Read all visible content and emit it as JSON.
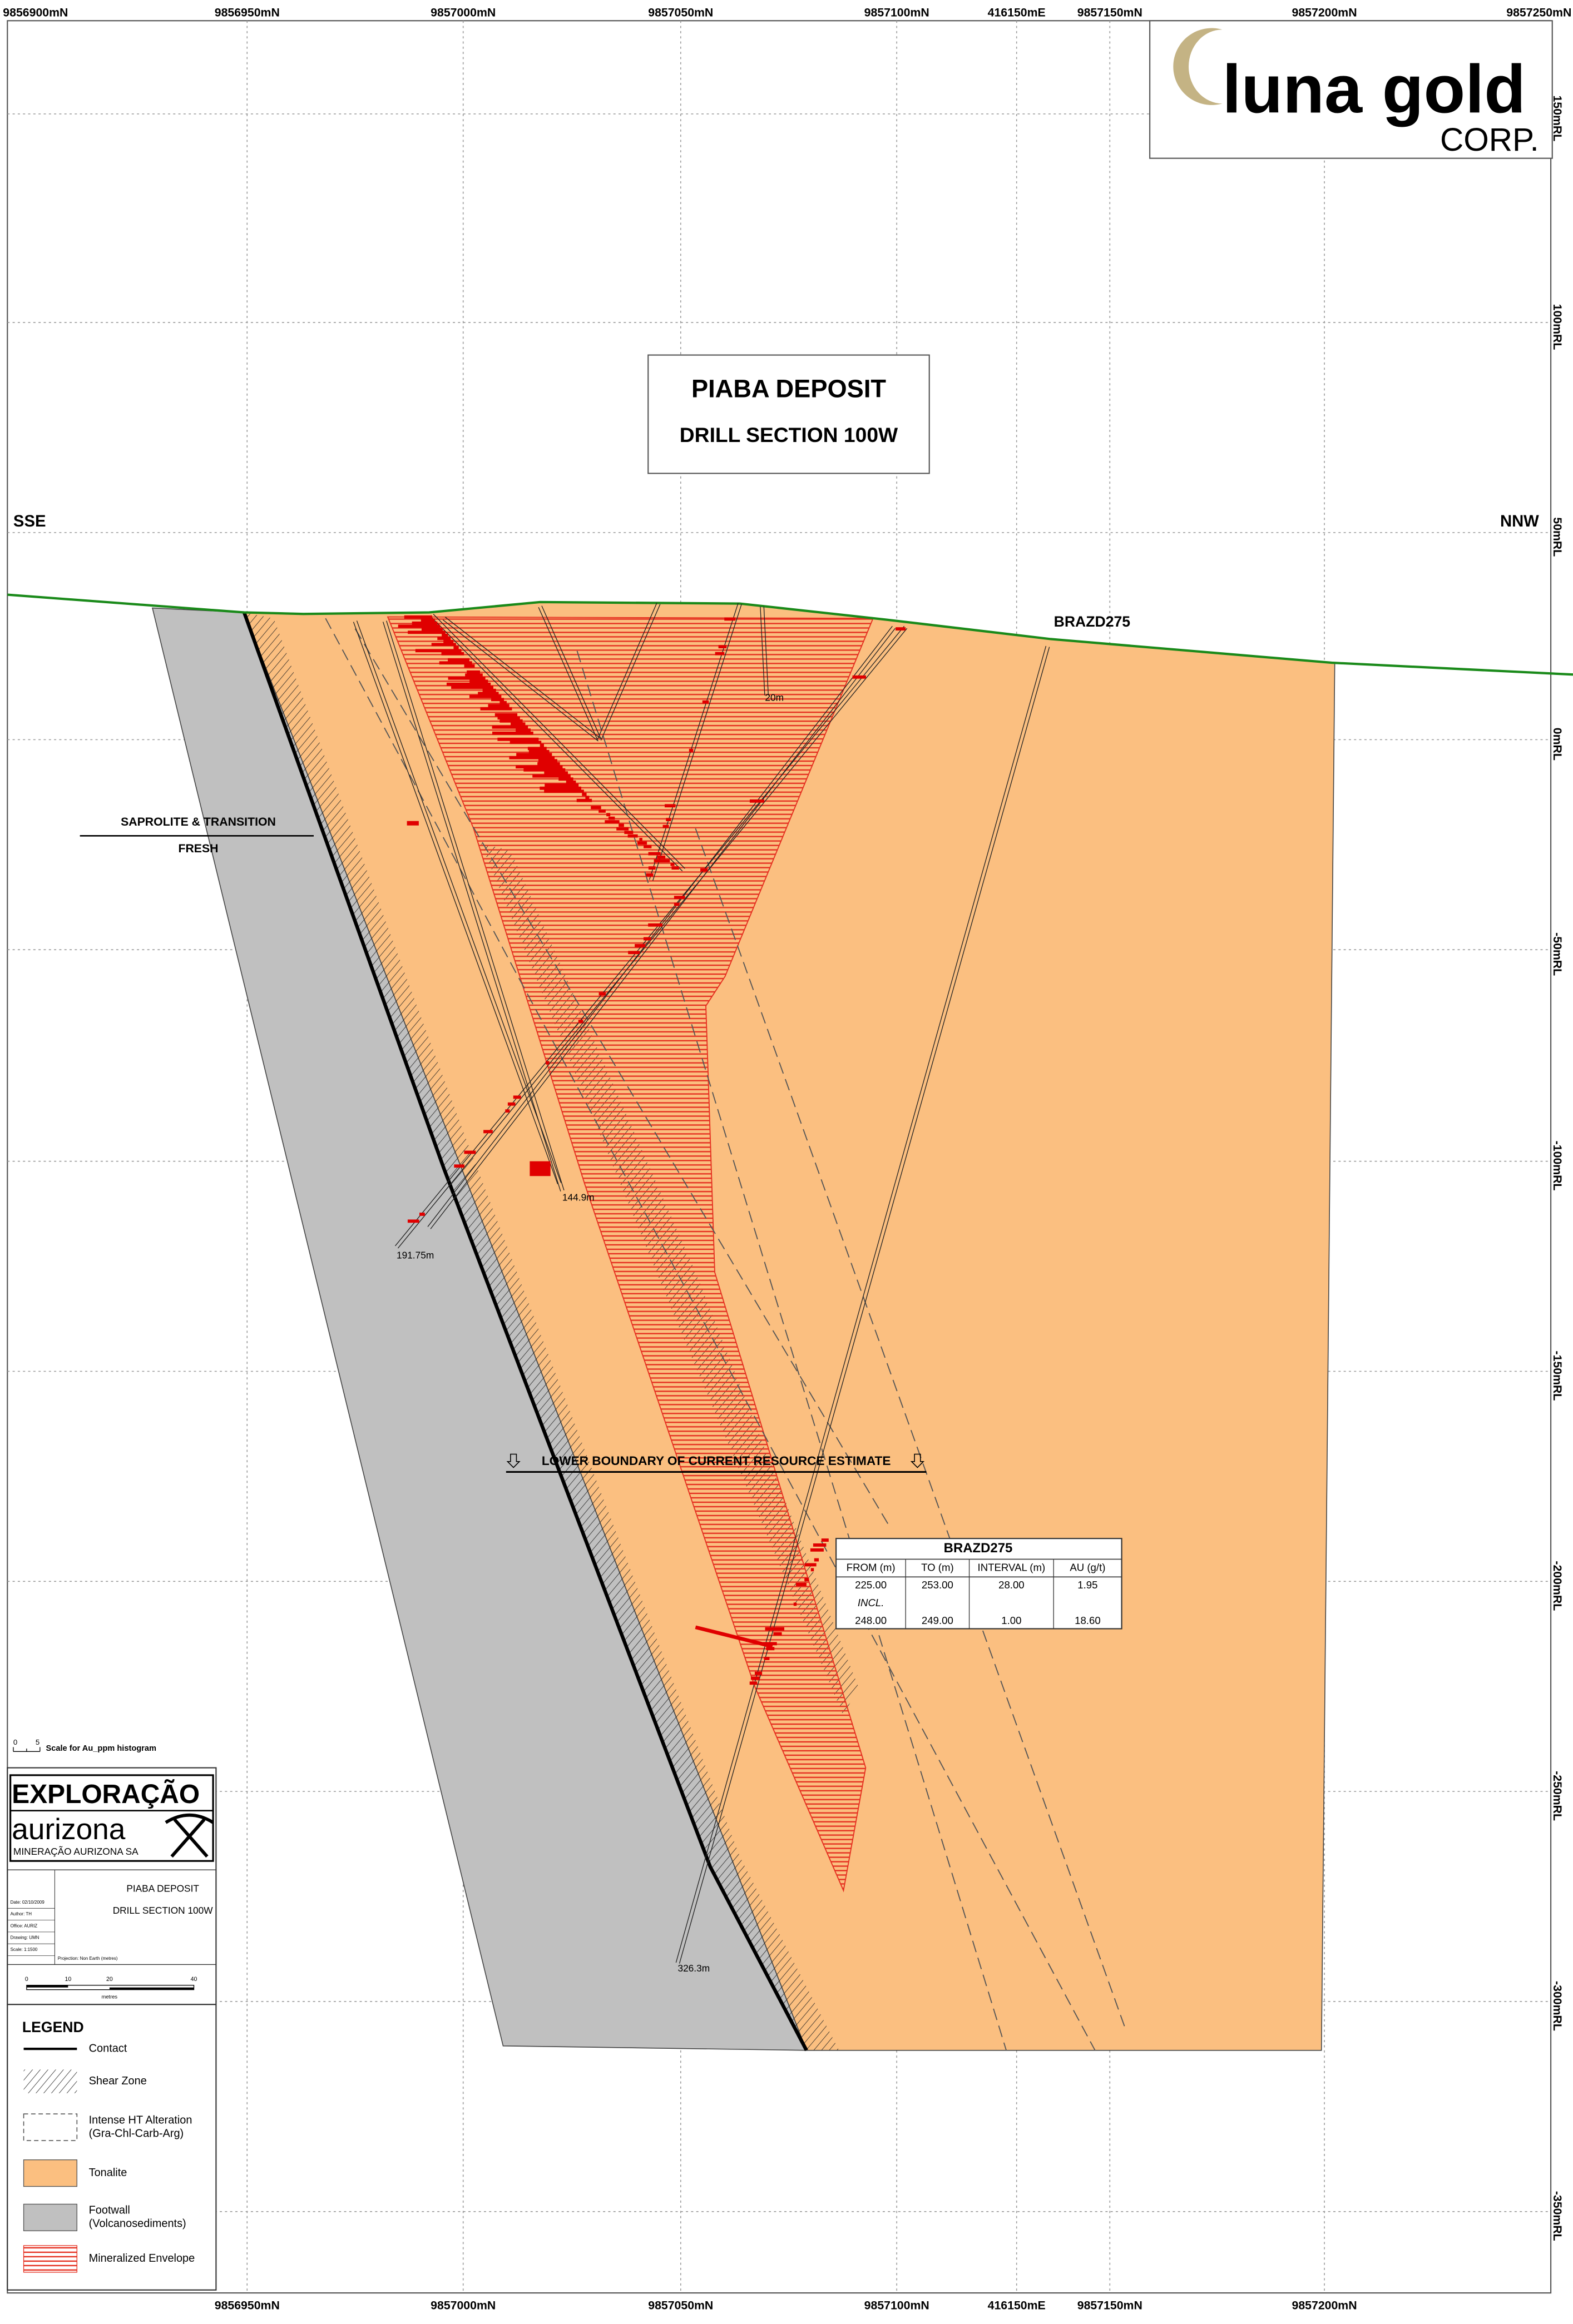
{
  "grid": {
    "top_labels": [
      "9856900mN",
      "9856950mN",
      "9857000mN",
      "9857050mN",
      "9857100mN",
      "416150mE",
      "9857150mN",
      "9857200mN",
      "9857250mN"
    ],
    "bottom_labels": [
      "9856950mN",
      "9857000mN",
      "9857050mN",
      "9857100mN",
      "416150mE",
      "9857150mN",
      "9857200mN"
    ],
    "right_labels": [
      "150mRL",
      "100mRL",
      "50mRL",
      "0mRL",
      "-50mRL",
      "-100mRL",
      "-150mRL",
      "-200mRL",
      "-250mRL",
      "-300mRL",
      "-350mRL"
    ]
  },
  "title_box": {
    "title": "PIABA DEPOSIT",
    "subtitle": "DRILL SECTION 100W"
  },
  "logo": {
    "word1": "luna",
    "word2": "gold",
    "word3": "CORP."
  },
  "orientation": {
    "left": "SSE",
    "right": "NNW"
  },
  "labels": {
    "hole": "BRAZD275",
    "saprolite": "SAPROLITE & TRANSITION",
    "fresh": "FRESH",
    "boundary": "LOWER BOUNDARY OF CURRENT RESOURCE ESTIMATE"
  },
  "hole_depths": [
    "20m",
    "144.9m",
    "191.75m",
    "326.3m"
  ],
  "table": {
    "title": "BRAZD275",
    "header": [
      "FROM (m)",
      "TO (m)",
      "INTERVAL (m)",
      "AU (g/t)"
    ],
    "rows": [
      [
        "225.00",
        "253.00",
        "28.00",
        "1.95"
      ],
      [
        "INCL."
      ],
      [
        "248.00",
        "249.00",
        "1.00",
        "18.60"
      ]
    ]
  },
  "histogram_scale": {
    "ticks": [
      "0",
      "5"
    ],
    "text": "Scale for Au_ppm histogram"
  },
  "title_block": {
    "brand": "EXPLORAÇÃO",
    "brand2": "aurizona",
    "company": "MINERAÇÃO AURIZONA SA",
    "project": "PIABA DEPOSIT",
    "section": "DRILL SECTION 100W",
    "fields": [
      "Date: 02/10/2009",
      "Author: TH",
      "Office: AURIZ",
      "Drawing: UMN",
      "Scale: 1:1500"
    ],
    "projection": "Projection: Non Earth (metres)",
    "scale_ticks": [
      "0",
      "10",
      "20",
      "40"
    ],
    "scale_unit": "metres"
  },
  "legend": {
    "title": "LEGEND",
    "items": [
      {
        "lines": [
          "Contact"
        ]
      },
      {
        "lines": [
          "Shear Zone"
        ]
      },
      {
        "lines": [
          "Intense HT Alteration",
          "(Gra-Chl-Carb-Arg)"
        ]
      },
      {
        "lines": [
          "Tonalite"
        ]
      },
      {
        "lines": [
          "Footwall",
          "(Volcanosediments)"
        ]
      },
      {
        "lines": [
          "Mineralized Envelope"
        ]
      }
    ]
  }
}
